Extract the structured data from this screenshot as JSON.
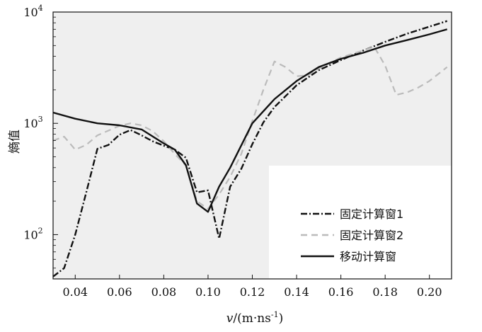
{
  "chart_data": {
    "type": "line",
    "ylabel": "熵值",
    "xlabel_main": "v",
    "xlabel_unit": "/(m·ns",
    "xlabel_sup": "-1",
    "xlabel_close": ")",
    "x_ticks": [
      "0.04",
      "0.06",
      "0.08",
      "0.10",
      "0.12",
      "0.14",
      "0.16",
      "0.18",
      "0.20"
    ],
    "x_tick_values": [
      0.04,
      0.06,
      0.08,
      0.1,
      0.12,
      0.14,
      0.16,
      0.18,
      0.2
    ],
    "y_ticks": [
      {
        "base": "10",
        "exp": "2",
        "value": 100
      },
      {
        "base": "10",
        "exp": "3",
        "value": 1000
      },
      {
        "base": "10",
        "exp": "4",
        "value": 10000
      }
    ],
    "xlim": [
      0.03,
      0.21
    ],
    "ylim": [
      40,
      10000
    ],
    "y_scale": "log",
    "legend_position": "bottom-right",
    "series": [
      {
        "name": "固定计算窗1",
        "style": "dash-dot",
        "color": "#111111",
        "x": [
          0.03,
          0.035,
          0.04,
          0.045,
          0.05,
          0.055,
          0.06,
          0.065,
          0.07,
          0.075,
          0.08,
          0.085,
          0.09,
          0.095,
          0.1,
          0.105,
          0.11,
          0.115,
          0.12,
          0.125,
          0.13,
          0.14,
          0.15,
          0.16,
          0.17,
          0.18,
          0.19,
          0.2,
          0.208
        ],
        "y": [
          42,
          50,
          100,
          240,
          590,
          640,
          790,
          870,
          780,
          690,
          630,
          580,
          490,
          240,
          250,
          92,
          270,
          390,
          650,
          1020,
          1400,
          2200,
          3000,
          3700,
          4500,
          5400,
          6400,
          7400,
          8300
        ]
      },
      {
        "name": "固定计算窗2",
        "style": "dashed",
        "color": "#bbbbbb",
        "x": [
          0.03,
          0.035,
          0.04,
          0.045,
          0.05,
          0.055,
          0.06,
          0.065,
          0.07,
          0.075,
          0.08,
          0.085,
          0.09,
          0.095,
          0.1,
          0.105,
          0.11,
          0.115,
          0.12,
          0.125,
          0.13,
          0.135,
          0.14,
          0.145,
          0.15,
          0.155,
          0.16,
          0.165,
          0.17,
          0.175,
          0.18,
          0.185,
          0.19,
          0.195,
          0.2,
          0.208
        ],
        "y": [
          700,
          760,
          580,
          640,
          780,
          860,
          950,
          1000,
          960,
          850,
          690,
          530,
          420,
          200,
          170,
          230,
          330,
          530,
          1050,
          2000,
          3600,
          3200,
          2650,
          2700,
          3100,
          3500,
          3900,
          4200,
          4500,
          4900,
          3300,
          1800,
          1900,
          2100,
          2400,
          3200
        ]
      },
      {
        "name": "移动计算窗",
        "style": "solid",
        "color": "#111111",
        "x": [
          0.03,
          0.04,
          0.05,
          0.06,
          0.07,
          0.08,
          0.085,
          0.09,
          0.095,
          0.1,
          0.105,
          0.11,
          0.12,
          0.13,
          0.14,
          0.15,
          0.16,
          0.17,
          0.18,
          0.19,
          0.2,
          0.208
        ],
        "y": [
          1250,
          1100,
          1000,
          960,
          880,
          660,
          580,
          420,
          190,
          160,
          270,
          400,
          1000,
          1650,
          2400,
          3200,
          3800,
          4300,
          5000,
          5600,
          6300,
          7000
        ]
      }
    ]
  }
}
